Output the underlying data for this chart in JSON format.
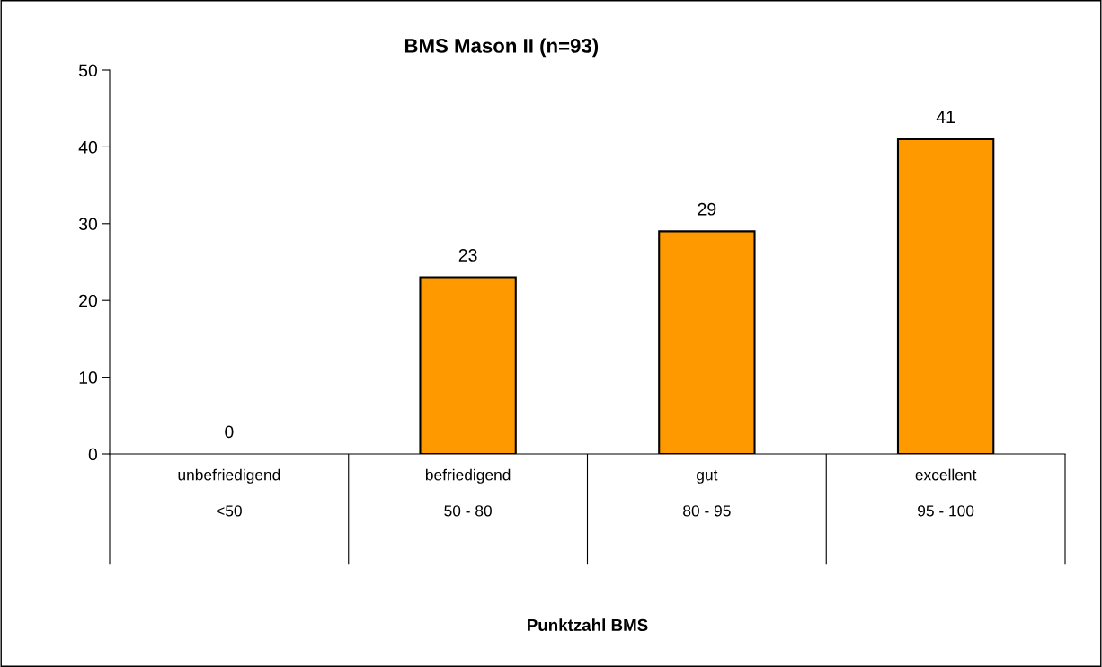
{
  "chart_data": {
    "type": "bar",
    "title": "BMS Mason II (n=93)",
    "annotations": [
      "Punktzahl BMS"
    ],
    "categories": [
      "unbefriedigend\n<50",
      "befriedigend\n50 - 80",
      "gut\n80 - 95",
      "excellent\n95 - 100"
    ],
    "values": [
      0,
      23,
      29,
      41
    ],
    "color": "#ff9900",
    "ylim": [
      0,
      50
    ],
    "yticks": [
      0,
      10,
      20,
      30,
      40,
      50
    ],
    "grid": false,
    "data_labels": true
  }
}
